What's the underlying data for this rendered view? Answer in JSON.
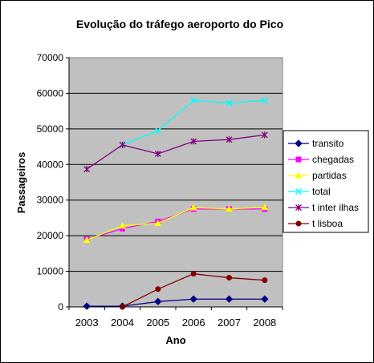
{
  "chart_data": {
    "type": "line",
    "title": "Evolução do tráfego aeroporto do Pico",
    "xlabel": "Ano",
    "ylabel": "Passageiros",
    "categories": [
      "2003",
      "2004",
      "2005",
      "2006",
      "2007",
      "2008"
    ],
    "ylim": [
      0,
      70000
    ],
    "yticks": [
      0,
      10000,
      20000,
      30000,
      40000,
      50000,
      60000,
      70000
    ],
    "ytick_labels": [
      "0",
      "10000",
      "20000",
      "30000",
      "40000",
      "50000",
      "60000",
      "70000"
    ],
    "grid": true,
    "legend_position": "right",
    "plot_background": "#c0c0c0",
    "series": [
      {
        "name": "transito",
        "color": "#000080",
        "marker": "diamond",
        "values": [
          200,
          200,
          1500,
          2200,
          2200,
          2200
        ]
      },
      {
        "name": "chegadas",
        "color": "#ff00ff",
        "marker": "square",
        "values": [
          19000,
          22000,
          24000,
          27500,
          27500,
          27500
        ]
      },
      {
        "name": "partidas",
        "color": "#ffff00",
        "marker": "triangle",
        "values": [
          18800,
          22800,
          23500,
          27900,
          27500,
          28000
        ]
      },
      {
        "name": "total",
        "color": "#00ffff",
        "marker": "x",
        "values": [
          null,
          45500,
          49500,
          58000,
          57300,
          58000
        ]
      },
      {
        "name": "t inter ilhas",
        "color": "#800080",
        "marker": "star",
        "values": [
          38700,
          45500,
          43000,
          46500,
          47000,
          48300
        ]
      },
      {
        "name": "t lisboa",
        "color": "#800000",
        "marker": "circle",
        "values": [
          null,
          0,
          5000,
          9300,
          8200,
          7500
        ]
      }
    ]
  }
}
